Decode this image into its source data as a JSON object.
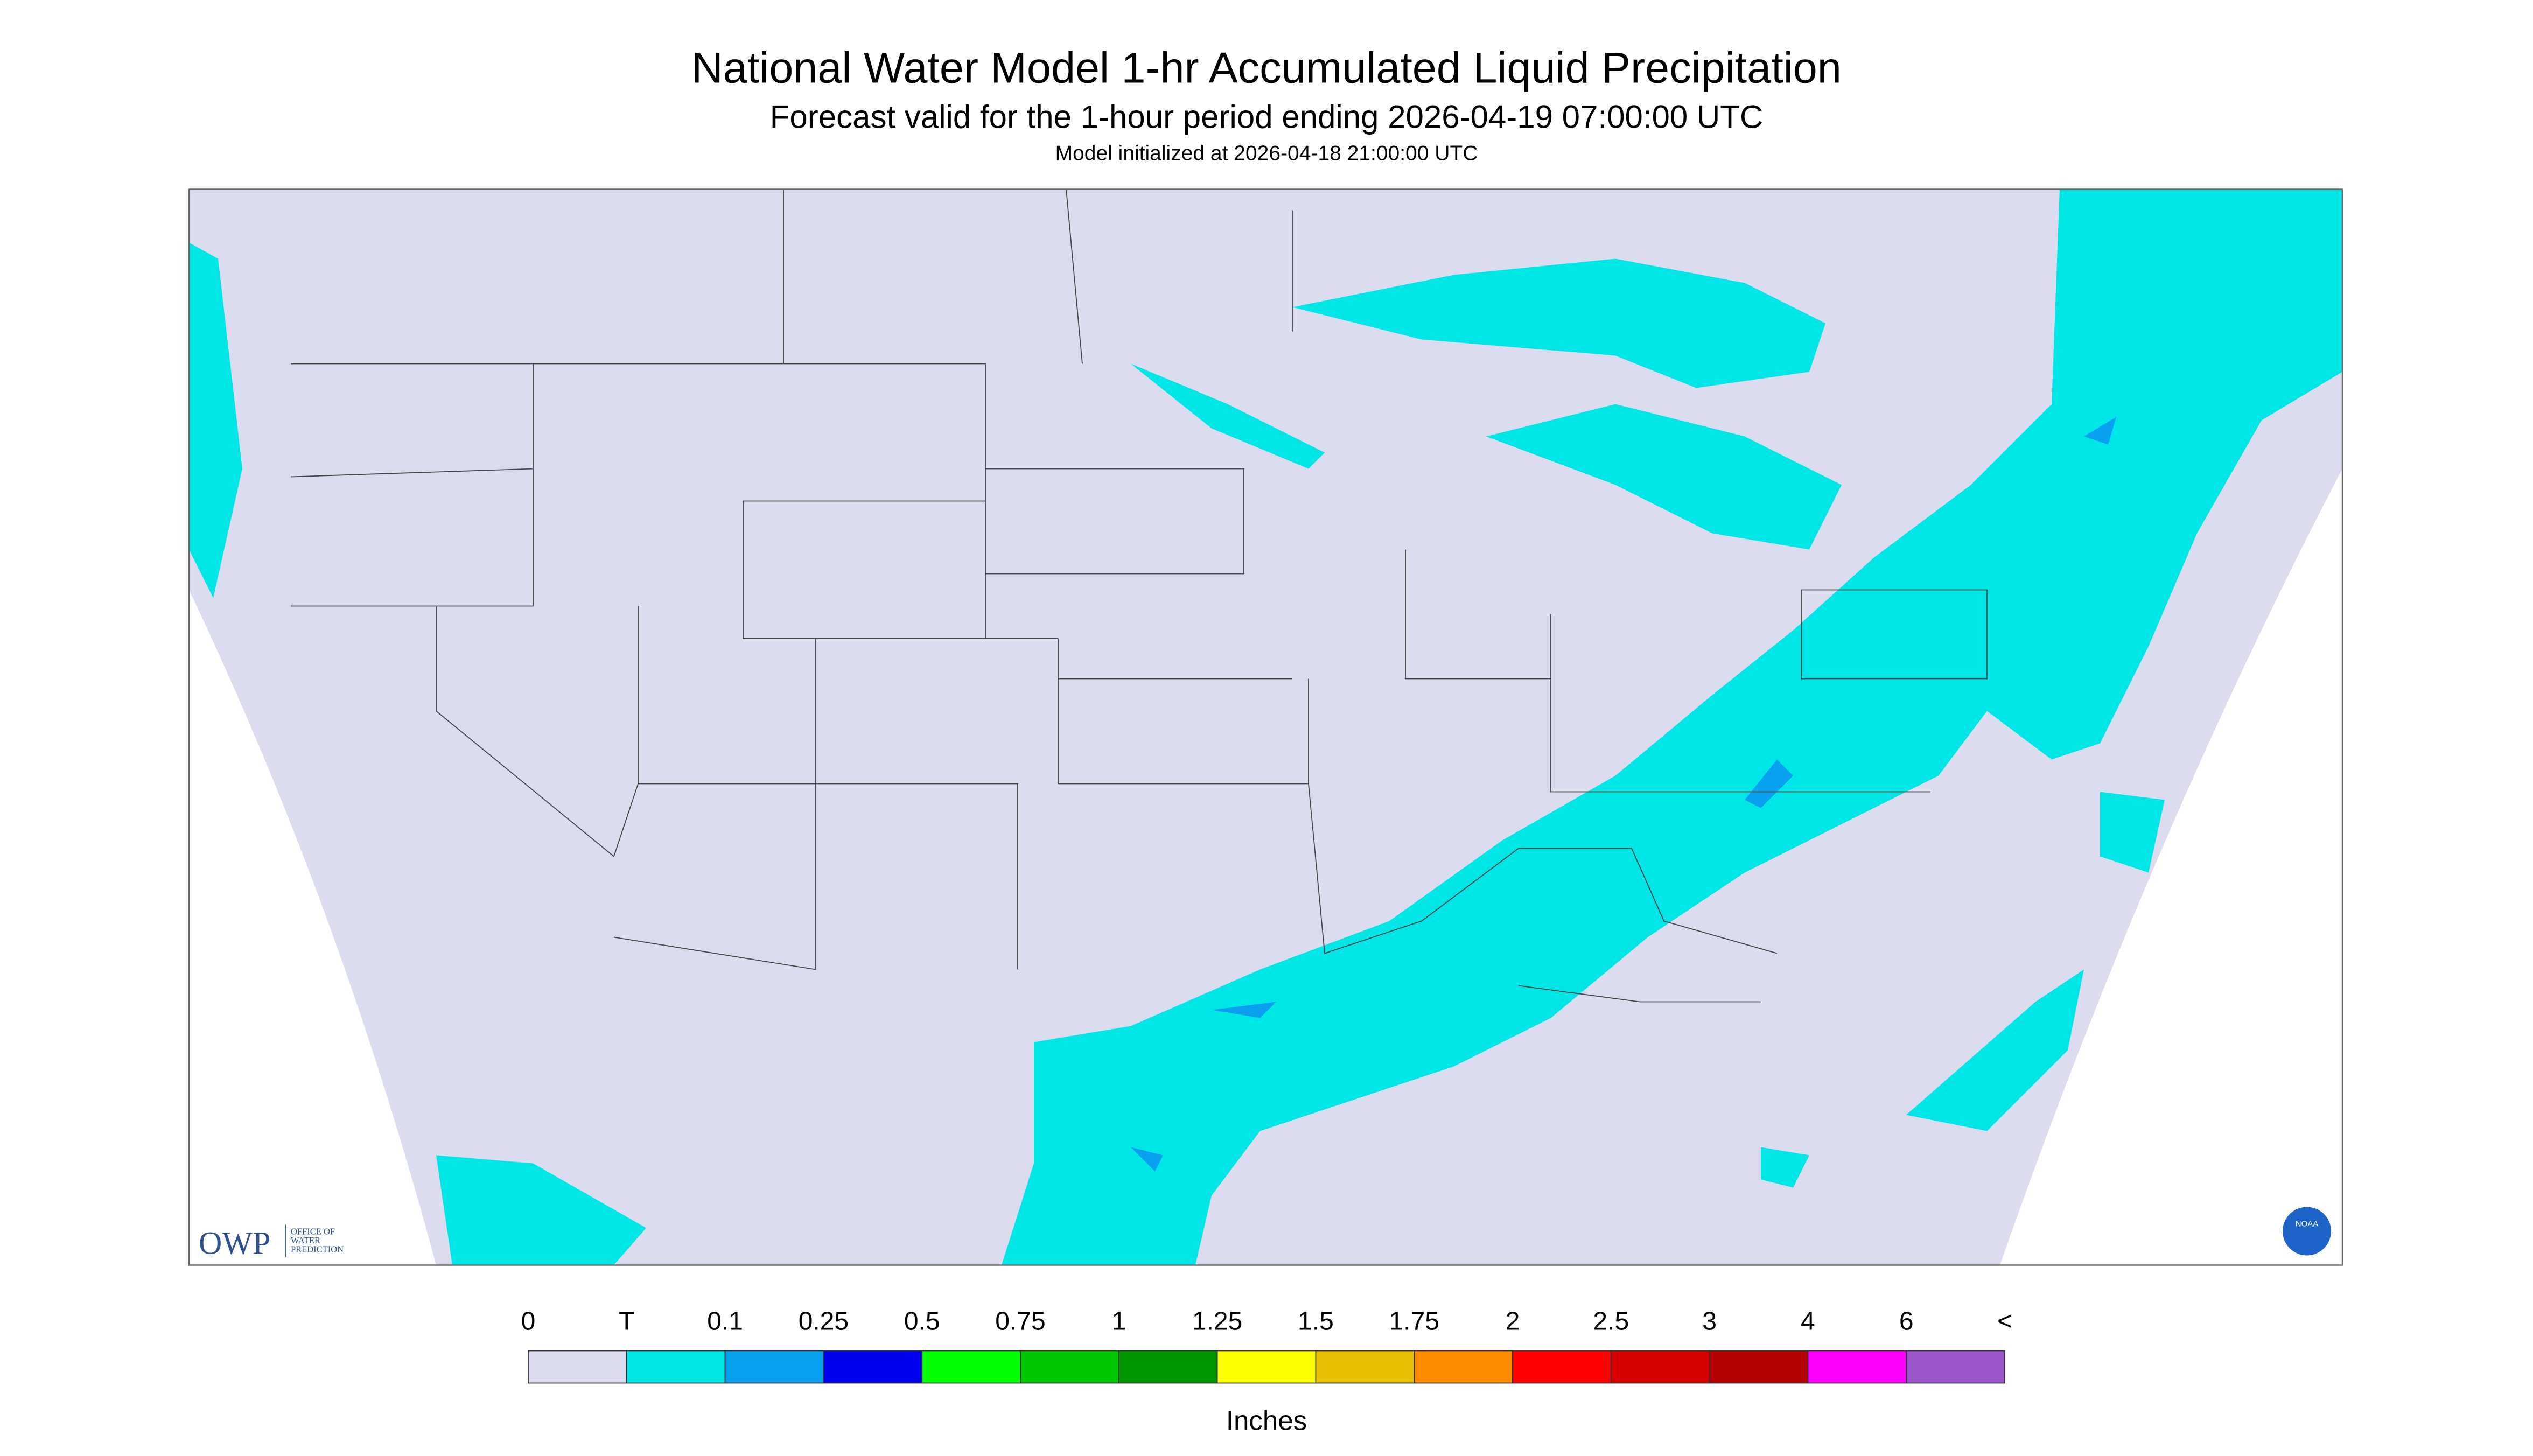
{
  "header": {
    "title": "National Water Model 1-hr Accumulated Liquid Precipitation",
    "subtitle": "Forecast valid for the 1-hour period ending 2026-04-19 07:00:00 UTC",
    "note": "Model initialized at 2026-04-18 21:00:00 UTC"
  },
  "logos": {
    "owp": "OWP",
    "owp_lines": [
      "OFFICE OF",
      "WATER",
      "PREDICTION"
    ],
    "noaa": "NOAA"
  },
  "legend": {
    "labels": [
      "0",
      "T",
      "0.1",
      "0.25",
      "0.5",
      "0.75",
      "1",
      "1.25",
      "1.5",
      "1.75",
      "2",
      "2.5",
      "3",
      "4",
      "6",
      "<"
    ],
    "colors": [
      "#dcdcf0",
      "#00e6e6",
      "#0aa0f0",
      "#0000f0",
      "#00ff00",
      "#00c800",
      "#009600",
      "#ffff00",
      "#e6c000",
      "#ff8c00",
      "#ff0000",
      "#d80000",
      "#b40000",
      "#ff00ff",
      "#9955c9"
    ],
    "unit": "Inches"
  }
}
